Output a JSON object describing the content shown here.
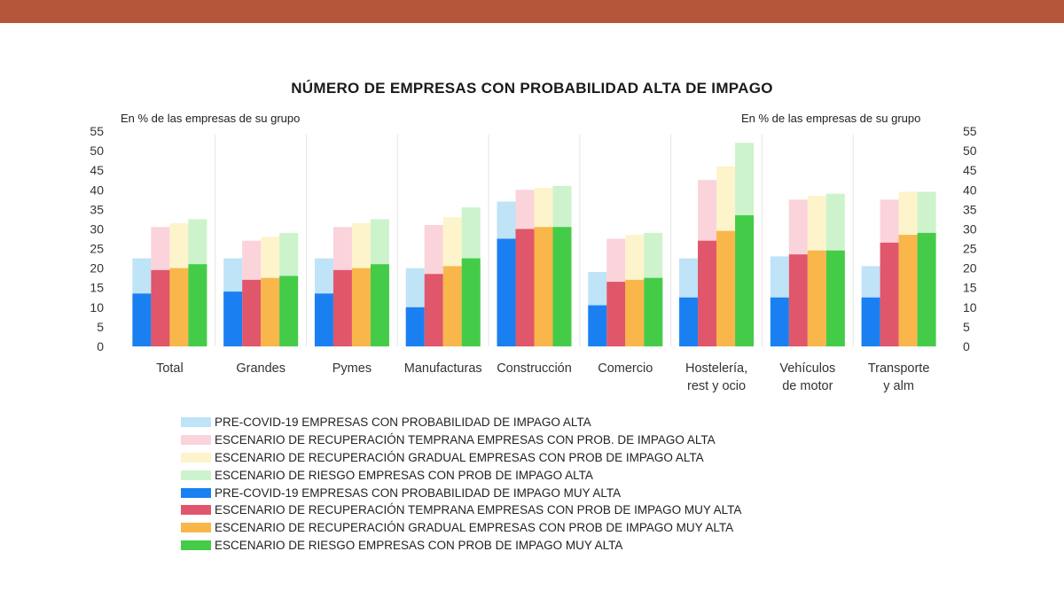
{
  "colors": {
    "top_bar": "#b5553a",
    "series": [
      "#bfe3f7",
      "#fbd3da",
      "#fdf4cc",
      "#cdf3cc",
      "#1a80f2",
      "#e0566a",
      "#f9b64a",
      "#44cc48"
    ]
  },
  "chart_data": {
    "type": "bar",
    "title": "NÚMERO DE EMPRESAS CON PROBABILIDAD ALTA DE IMPAGO",
    "ylabel_left": "En % de las empresas de su grupo",
    "ylabel_right": "En % de las empresas de su grupo",
    "ylim": [
      0,
      55
    ],
    "yticks": [
      0,
      5,
      10,
      15,
      20,
      25,
      30,
      35,
      40,
      45,
      50,
      55
    ],
    "grid": false,
    "legend_position": "bottom",
    "categories": [
      [
        "Total"
      ],
      [
        "Grandes"
      ],
      [
        "Pymes"
      ],
      [
        "Manufacturas"
      ],
      [
        "Construcción"
      ],
      [
        "Comercio"
      ],
      [
        "Hostelería,",
        "rest  y ocio"
      ],
      [
        "Vehículos",
        "de motor"
      ],
      [
        "Transporte",
        "y alm"
      ]
    ],
    "series": [
      {
        "name": "PRE-COVID-19  EMPRESAS CON PROBABILIDAD DE IMPAGO ALTA",
        "values": [
          22.5,
          22.5,
          22.5,
          20,
          37,
          19,
          22.5,
          23,
          20.5
        ]
      },
      {
        "name": "ESCENARIO DE RECUPERACIÓN TEMPRANA  EMPRESAS CON PROB. DE IMPAGO ALTA",
        "values": [
          30.5,
          27,
          30.5,
          31,
          40,
          27.5,
          42.5,
          37.5,
          37.5
        ]
      },
      {
        "name": "ESCENARIO DE RECUPERACIÓN GRADUAL  EMPRESAS CON PROB  DE IMPAGO ALTA",
        "values": [
          31.5,
          28,
          31.5,
          33,
          40.5,
          28.5,
          46,
          38.5,
          39.5
        ]
      },
      {
        "name": "ESCENARIO DE RIESGO  EMPRESAS CON PROB  DE IMPAGO ALTA",
        "values": [
          32.5,
          29,
          32.5,
          35.5,
          41,
          29,
          52,
          39,
          39.5
        ]
      },
      {
        "name": "PRE-COVID-19  EMPRESAS CON PROBABILIDAD DE IMPAGO MUY ALTA",
        "values": [
          13.5,
          14,
          13.5,
          10,
          27.5,
          10.5,
          12.5,
          12.5,
          12.5
        ]
      },
      {
        "name": "ESCENARIO DE RECUPERACIÓN TEMPRANA  EMPRESAS CON PROB  DE IMPAGO MUY ALTA",
        "values": [
          19.5,
          17,
          19.5,
          18.5,
          30,
          16.5,
          27,
          23.5,
          26.5
        ]
      },
      {
        "name": "ESCENARIO DE RECUPERACIÓN GRADUAL  EMPRESAS CON PROB  DE IMPAGO MUY ALTA",
        "values": [
          20,
          17.5,
          20,
          20.5,
          30.5,
          17,
          29.5,
          24.5,
          28.5
        ]
      },
      {
        "name": "ESCENARIO DE RIESGO  EMPRESAS CON PROB  DE IMPAGO MUY ALTA",
        "values": [
          21,
          18,
          21,
          22.5,
          30.5,
          17.5,
          33.5,
          24.5,
          29
        ]
      }
    ]
  }
}
